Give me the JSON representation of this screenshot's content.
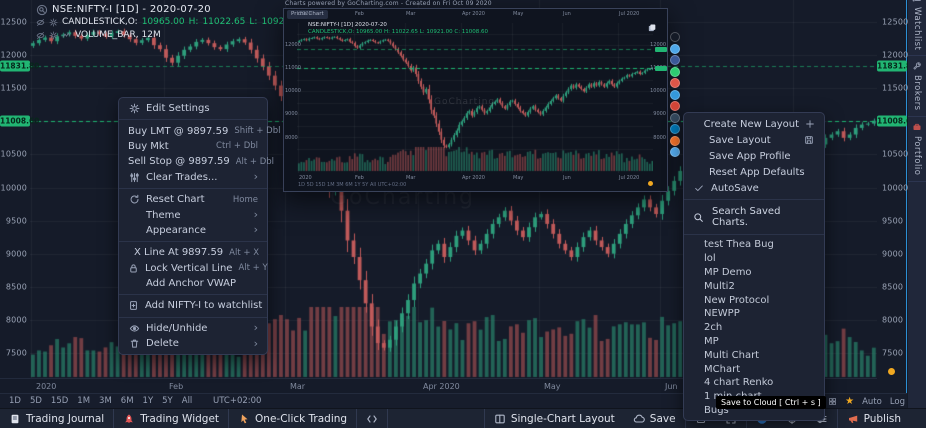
{
  "colors": {
    "up": "#2e9e7c",
    "down": "#c05a5a",
    "level_green": "#1fbf75",
    "badge_green": "#21b573",
    "accent_blue": "#2b8fd4",
    "orange": "#f0a821"
  },
  "chart": {
    "title": "NSE:NIFTY-I [1D] - 2020-07-20",
    "legend_series": "CANDLESTICK,O:",
    "legend_open": "10965.00",
    "legend_h_label": "H:",
    "legend_high": "11022.65",
    "legend_l_label": "L:",
    "legend_low": "10921.00",
    "legend_c_label": "C:",
    "legend_close": "11008.60",
    "volume_label": "VOLUME_BAR, 12M",
    "watermark": "GoCharting",
    "price_ticks": [
      "12500",
      "12000",
      "11500",
      "10500",
      "10000",
      "9500",
      "9000",
      "8500",
      "8000",
      "7500"
    ],
    "badge_high": "11831.80",
    "badge_last": "11008.60",
    "time_labels": [
      "2020",
      "Feb",
      "Mar",
      "Apr 2020",
      "May",
      "Jun"
    ],
    "timeframes": [
      "1D",
      "5D",
      "15D",
      "1M",
      "3M",
      "6M",
      "1Y",
      "5Y",
      "All"
    ],
    "timezone": "UTC+02:00",
    "axis_auto": "Auto",
    "axis_log": "Log"
  },
  "chart_data": {
    "type": "candlestick",
    "symbol": "NSE:NIFTY-I",
    "interval": "1D",
    "last_date": "2020-07-20",
    "ohlc_current": {
      "open": 10965.0,
      "high": 11022.65,
      "low": 10921.0,
      "close": 11008.6
    },
    "levels": [
      11831.8,
      11008.6
    ],
    "ylim": [
      7500,
      12500
    ],
    "x_axis_labels": [
      "2020",
      "Feb",
      "Mar",
      "Apr 2020",
      "May",
      "Jun"
    ],
    "month_start_indices": [
      0,
      22,
      42,
      64,
      84,
      104,
      126
    ],
    "closes": [
      12180,
      12230,
      12265,
      12210,
      12285,
      12310,
      12345,
      12290,
      12250,
      12305,
      12350,
      12320,
      12280,
      12335,
      12360,
      12300,
      12240,
      12185,
      12225,
      12260,
      12150,
      12090,
      11960,
      11885,
      11990,
      12080,
      12130,
      12200,
      12230,
      12180,
      12120,
      12090,
      12160,
      12210,
      12240,
      12190,
      12080,
      11950,
      11830,
      11690,
      11540,
      11380,
      11250,
      11100,
      10900,
      11030,
      10750,
      10450,
      10200,
      9950,
      10100,
      9650,
      9200,
      8950,
      8600,
      8250,
      7900,
      7650,
      7580,
      7700,
      7900,
      8100,
      8300,
      8550,
      8700,
      8850,
      9050,
      9150,
      8950,
      9100,
      9270,
      9350,
      9200,
      9050,
      9150,
      9300,
      9450,
      9550,
      9650,
      9500,
      9350,
      9250,
      9400,
      9550,
      9600,
      9450,
      9300,
      9150,
      9050,
      8950,
      9100,
      9250,
      9350,
      9200,
      9100,
      9000,
      9150,
      9300,
      9450,
      9580,
      9700,
      9820,
      9700,
      9600,
      9800,
      9950,
      10100,
      10250,
      10150,
      10300,
      10200,
      10100,
      10000,
      10150,
      10300,
      10200,
      10350,
      10250,
      10400,
      10300,
      10200,
      10350,
      10450,
      10300,
      10200,
      10350,
      10450,
      10550,
      10600,
      10700,
      10650,
      10750,
      10800,
      10850,
      10750,
      10800,
      10900,
      10950,
      10965,
      11008.6
    ]
  },
  "context_menu": {
    "sections": [
      [
        {
          "icon": "gear",
          "label": "Edit Settings"
        }
      ],
      [
        {
          "label": "Buy LMT @ 9897.59",
          "shortcut": "Shift + Dbl"
        },
        {
          "label": "Buy Mkt",
          "shortcut": "Ctrl + Dbl"
        },
        {
          "label": "Sell Stop @ 9897.59",
          "shortcut": "Alt + Dbl"
        },
        {
          "icon": "sliders",
          "label": "Clear Trades...",
          "chevron": true
        }
      ],
      [
        {
          "icon": "reset",
          "label": "Reset Chart",
          "shortcut": "Home"
        },
        {
          "label": "Theme",
          "chevron": true,
          "indent": true
        },
        {
          "label": "Appearance",
          "chevron": true,
          "indent": true
        }
      ],
      [
        {
          "label": "X Line At 9897.59",
          "shortcut": "Alt + X",
          "indent": true
        },
        {
          "icon": "lock",
          "label": "Lock Vertical Line",
          "shortcut": "Alt + Y"
        },
        {
          "label": "Add Anchor VWAP",
          "indent": true
        }
      ],
      [
        {
          "icon": "bookadd",
          "label": "Add NIFTY-I to watchlist"
        }
      ],
      [
        {
          "icon": "eye",
          "label": "Hide/Unhide",
          "chevron": true
        },
        {
          "icon": "trash",
          "label": "Delete",
          "chevron": true
        }
      ]
    ]
  },
  "layout_menu": {
    "items": [
      {
        "label": "Create New Layout",
        "right_icon": "plus"
      },
      {
        "label": "Save Layout",
        "right_icon": "floppy"
      },
      {
        "label": "Save App Profile"
      },
      {
        "label": "Reset App Defaults"
      },
      {
        "label": "AutoSave",
        "left_icon": "check"
      }
    ],
    "search_placeholder": "Search Saved Charts.",
    "saved_charts": [
      "test Thea Bug",
      "lol",
      "MP Demo",
      "Multi2",
      "New Protocol",
      "NEWPP",
      "2ch",
      "MP",
      "Multi Chart",
      "MChart",
      "4 chart Renko",
      "1 min chart",
      "Bugs"
    ]
  },
  "mini_window": {
    "header": "Charts powered by GoCharting.com  -  Created on Fri Oct 09 2020",
    "tab": "Prime Chart",
    "title": "NSE:NIFTY-I [1D] 2020-07-20",
    "legend": "CANDLESTICK,O: 10965.00 H: 11022.65 L: 10921.00 C: 11008.60",
    "time_labels": [
      "2020",
      "Feb",
      "Mar",
      "Apr 2020",
      "May",
      "Jun",
      "Jul 2020"
    ],
    "price_labels": [
      "12000",
      "11000",
      "10000",
      "9000",
      "8000"
    ],
    "bottom_bar_text": "1D  5D  15D  1M  3M  6M  1Y  5Y  All      UTC+02:00",
    "watermark": "GoCharting",
    "share_colors": [
      "#141a26",
      "#4da6e8",
      "#3b5998",
      "#2ecc71",
      "#e05648",
      "#3498db",
      "#d44638",
      "#34495e",
      "#0077b5",
      "#f2722b",
      "#55acee"
    ]
  },
  "app": {
    "tooltip": "Save to Cloud [ Ctrl + s ]",
    "bottom_bar_left": [
      {
        "icon": "journal",
        "label": "Trading Journal"
      },
      {
        "icon": "rocket",
        "label": "Trading Widget"
      },
      {
        "icon": "pointer",
        "label": "One-Click Trading"
      },
      {
        "icon": "code",
        "label": ""
      }
    ],
    "bottom_bar_right": [
      {
        "icon": "layout",
        "label": "Single-Chart Layout",
        "group": 0
      },
      {
        "icon": "cloud",
        "label": "Save",
        "group": 0
      },
      {
        "icon": "square",
        "label": "",
        "group": 1
      },
      {
        "icon": "expand",
        "label": "",
        "group": 1
      },
      {
        "icon": "camera",
        "label": "",
        "group": 2
      },
      {
        "icon": "target",
        "label": "",
        "group": 2
      },
      {
        "icon": "tune",
        "label": "",
        "group": 2
      },
      {
        "icon": "megaphone",
        "label": "Publish",
        "group": 3
      }
    ],
    "side_tabs": [
      {
        "icon": "list",
        "label": "Watchlist"
      },
      {
        "icon": "wrench",
        "label": "Brokers"
      },
      {
        "icon": "briefcase",
        "label": "Portfolio"
      }
    ]
  }
}
